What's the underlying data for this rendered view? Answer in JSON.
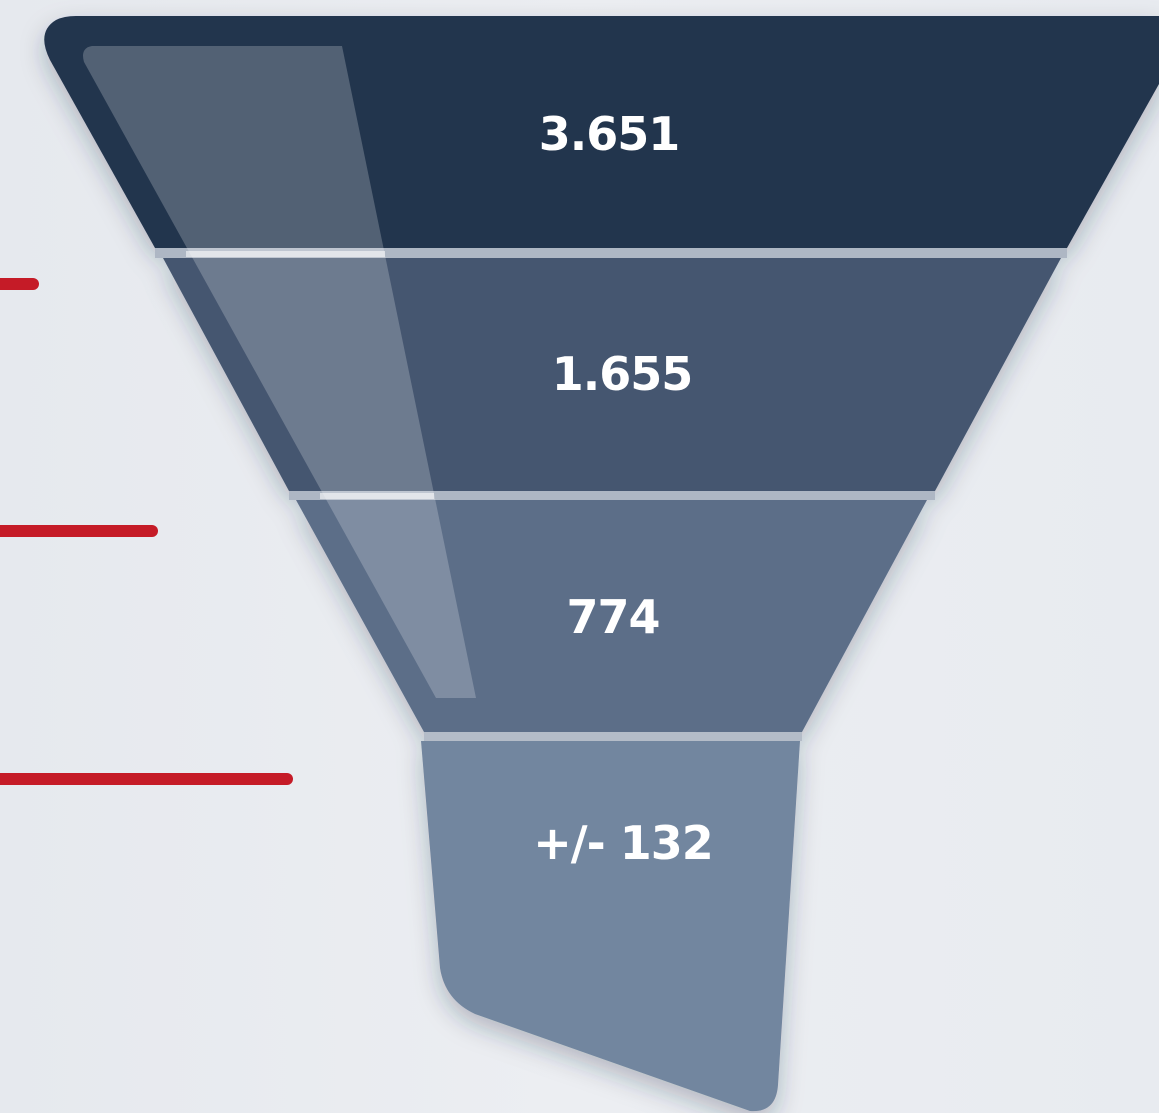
{
  "chart_data": {
    "type": "funnel",
    "stages": [
      {
        "label": "3.651",
        "value": 3651,
        "color": "#24344d"
      },
      {
        "label": "1.655",
        "value": 1655,
        "color": "#44566f"
      },
      {
        "label": "774",
        "value": 774,
        "color": "#5b6e88"
      },
      {
        "label": "+/- 132",
        "value": 132,
        "color": "#72869f"
      }
    ],
    "accent_lines": [
      {
        "stage": 1,
        "color": "#c51b27"
      },
      {
        "stage": 2,
        "color": "#c51b27"
      },
      {
        "stage": 3,
        "color": "#c51b27"
      }
    ]
  }
}
